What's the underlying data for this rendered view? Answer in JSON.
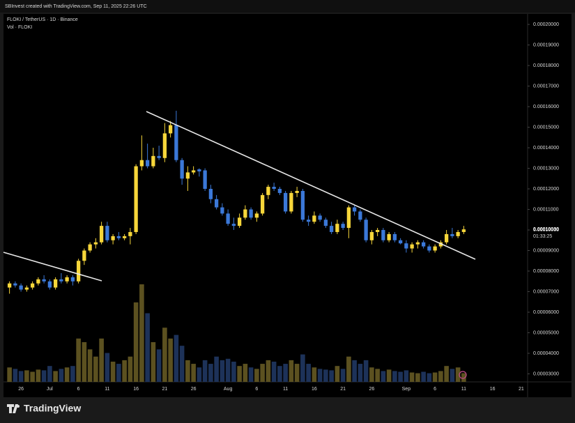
{
  "credit": "SBInvest created with TradingView.com, Sep 11, 2025 22:26 UTC",
  "brand": "TradingView",
  "chart_data": {
    "type": "candlestick",
    "title": "FLOKI / TetherUS · 1D · Binance",
    "subtitle": "Vol · FLOKI",
    "up_color": "#f7d63a",
    "down_color": "#3b78d8",
    "volume_up_color": "#5c5120",
    "volume_down_color": "#1d3259",
    "categories": [
      null,
      null,
      "26",
      null,
      null,
      null,
      null,
      "Jul",
      null,
      null,
      null,
      null,
      "6",
      null,
      null,
      null,
      null,
      "11",
      null,
      null,
      null,
      null,
      "16",
      null,
      null,
      null,
      null,
      "21",
      null,
      null,
      null,
      null,
      "26",
      null,
      null,
      null,
      null,
      null,
      "Aug",
      null,
      null,
      null,
      null,
      "6",
      null,
      null,
      null,
      null,
      "11",
      null,
      null,
      null,
      null,
      "16",
      null,
      null,
      null,
      null,
      "21",
      null,
      null,
      null,
      null,
      "26",
      null,
      null,
      null,
      null,
      null,
      "Sep",
      null,
      null,
      null,
      null,
      "6",
      null,
      null,
      null,
      null,
      "11",
      null,
      null,
      null,
      null,
      "16",
      null,
      null,
      null,
      null,
      "21"
    ],
    "open": [
      7.2e-05,
      7.4e-05,
      7.3e-05,
      7.1e-05,
      7.2e-05,
      7.4e-05,
      7.6e-05,
      7.5e-05,
      7.2e-05,
      7.6e-05,
      7.5e-05,
      7.7e-05,
      7.5e-05,
      8.5e-05,
      9e-05,
      9.3e-05,
      9.4e-05,
      0.000102,
      9.5e-05,
      9.7e-05,
      9.6e-05,
      9.7e-05,
      9.9e-05,
      0.000131,
      0.000134,
      0.000131,
      0.000136,
      0.000135,
      0.000147,
      0.000151,
      0.000134,
      0.000125,
      0.000128,
      0.0001295,
      0.000129,
      0.00012,
      0.000115,
      0.000111,
      0.000108,
      0.000103,
      0.000102,
      0.000106,
      0.00011,
      0.000106,
      0.000108,
      0.000117,
      0.000121,
      0.00012,
      0.000118,
      0.000109,
      0.000118,
      0.000119,
      0.000105,
      0.000104,
      0.000107,
      0.000105,
      0.000102,
      9.9e-05,
      0.000103,
      0.000101,
      0.000111,
      0.000109,
      0.000105,
      9.5e-05,
      9.9e-05,
      0.0001,
      9.5e-05,
      9.8e-05,
      9.5e-05,
      9.35e-05,
      9.1e-05,
      9.3e-05,
      9.4e-05,
      9.2e-05,
      9e-05,
      9.2e-05,
      9.4e-05,
      9.8e-05,
      9.7e-05,
      9.9e-05,
      null,
      null,
      null,
      null,
      null,
      null,
      null,
      null,
      null,
      null
    ],
    "high": [
      7.5e-05,
      7.5e-05,
      7.4e-05,
      7.3e-05,
      7.5e-05,
      7.7e-05,
      7.8e-05,
      7.6e-05,
      7.7e-05,
      7.9e-05,
      7.8e-05,
      7.8e-05,
      8.6e-05,
      9.1e-05,
      9.4e-05,
      9.6e-05,
      0.000104,
      0.000104,
      9.8e-05,
      9.9e-05,
      9.8e-05,
      0.000101,
      0.000132,
      0.000146,
      0.000142,
      0.00014,
      0.000141,
      0.000152,
      0.000153,
      0.000158,
      0.000135,
      0.000131,
      0.000131,
      0.00013,
      0.00013,
      0.000122,
      0.000117,
      0.000113,
      0.00011,
      0.000106,
      0.000108,
      0.000112,
      0.000111,
      0.000109,
      0.000118,
      0.000122,
      0.000123,
      0.000121,
      0.000119,
      0.000119,
      0.000121,
      0.00012,
      0.000107,
      0.000109,
      0.000108,
      0.000106,
      0.000104,
      0.000105,
      0.000104,
      0.000112,
      0.000112,
      0.00011,
      0.000106,
      0.0001,
      0.000101,
      0.000101,
      9.9e-05,
      9.9e-05,
      9.6e-05,
      9.5e-05,
      9.4e-05,
      9.5e-05,
      9.5e-05,
      9.3e-05,
      9.3e-05,
      9.5e-05,
      0.0001,
      0.000101,
      0.0001,
      0.000102,
      null,
      null,
      null,
      null,
      null,
      null,
      null,
      null,
      null,
      null
    ],
    "low": [
      6.9e-05,
      7.2e-05,
      7e-05,
      7e-05,
      7.1e-05,
      7.3e-05,
      7.4e-05,
      7.1e-05,
      7.1e-05,
      7.4e-05,
      7.4e-05,
      7.3e-05,
      7.4e-05,
      8.3e-05,
      8.9e-05,
      9.1e-05,
      9.3e-05,
      9.4e-05,
      9.3e-05,
      9.5e-05,
      9.5e-05,
      9.3e-05,
      9.8e-05,
      0.000129,
      0.00013,
      0.00013,
      0.000134,
      0.000133,
      0.000145,
      0.000133,
      0.000122,
      0.000119,
      0.000127,
      0.000126,
      0.000119,
      0.000113,
      0.00011,
      0.000107,
      0.000102,
      0.0001,
      0.000101,
      0.000105,
      0.000105,
      0.000104,
      0.000107,
      0.000115,
      0.000119,
      0.000117,
      0.000108,
      0.000108,
      0.000116,
      0.000104,
      0.000102,
      0.000103,
      0.000104,
      0.000101,
      9.8e-05,
      9.8e-05,
      0.0001,
      9.6e-05,
      0.000107,
      0.000104,
      9.4e-05,
      9.3e-05,
      9.7e-05,
      9.4e-05,
      9.4e-05,
      9.4e-05,
      9.3e-05,
      8.9e-05,
      8.9e-05,
      9.1e-05,
      9.1e-05,
      8.9e-05,
      8.9e-05,
      9.1e-05,
      9.3e-05,
      9.6e-05,
      9.6e-05,
      9.8e-05,
      null,
      null,
      null,
      null,
      null,
      null,
      null,
      null,
      null,
      null
    ],
    "close": [
      7.4e-05,
      7.3e-05,
      7.1e-05,
      7.2e-05,
      7.4e-05,
      7.6e-05,
      7.5e-05,
      7.2e-05,
      7.6e-05,
      7.5e-05,
      7.7e-05,
      7.5e-05,
      8.5e-05,
      9e-05,
      9.3e-05,
      9.4e-05,
      0.000102,
      9.5e-05,
      9.7e-05,
      9.6e-05,
      9.7e-05,
      9.9e-05,
      0.000131,
      0.000134,
      0.000131,
      0.000136,
      0.000135,
      0.000147,
      0.000151,
      0.000134,
      0.000125,
      0.000128,
      0.000129,
      0.0001285,
      0.00012,
      0.000115,
      0.000111,
      0.000108,
      0.000103,
      0.000102,
      0.000106,
      0.00011,
      0.000106,
      0.000108,
      0.000117,
      0.000121,
      0.00012,
      0.000118,
      0.000109,
      0.000118,
      0.000119,
      0.000105,
      0.000104,
      0.000107,
      0.000105,
      0.000102,
      9.9e-05,
      0.000103,
      0.000101,
      0.000111,
      0.000109,
      0.000105,
      9.5e-05,
      9.9e-05,
      0.0001,
      9.5e-05,
      9.8e-05,
      9.5e-05,
      9.35e-05,
      9.1e-05,
      9.3e-05,
      9.4e-05,
      9.2e-05,
      9e-05,
      9.2e-05,
      9.4e-05,
      9.8e-05,
      9.7e-05,
      9.9e-05,
      0.0001003,
      null,
      null,
      null,
      null,
      null,
      null,
      null,
      null,
      null,
      null
    ],
    "volume": [
      20,
      18,
      15,
      16,
      14,
      17,
      16,
      22,
      15,
      18,
      20,
      22,
      60,
      55,
      45,
      35,
      60,
      40,
      28,
      25,
      30,
      35,
      110,
      135,
      95,
      55,
      45,
      75,
      60,
      65,
      50,
      30,
      25,
      20,
      30,
      25,
      35,
      30,
      32,
      28,
      22,
      25,
      20,
      18,
      25,
      30,
      28,
      22,
      25,
      30,
      25,
      38,
      25,
      20,
      18,
      17,
      16,
      22,
      18,
      35,
      30,
      25,
      30,
      20,
      18,
      15,
      17,
      15,
      14,
      16,
      13,
      12,
      14,
      12,
      13,
      15,
      22,
      18,
      20,
      12,
      null,
      null,
      null,
      null,
      null,
      null,
      null,
      null,
      null,
      null
    ],
    "ylim": [
      2.61e-05,
      0.0002051
    ],
    "yticks": [
      {
        "value": 3e-05,
        "label": "0.00003000"
      },
      {
        "value": 4e-05,
        "label": "0.00004000"
      },
      {
        "value": 5e-05,
        "label": "0.00005000"
      },
      {
        "value": 6e-05,
        "label": "0.00006000"
      },
      {
        "value": 7e-05,
        "label": "0.00007000"
      },
      {
        "value": 8e-05,
        "label": "0.00008000"
      },
      {
        "value": 9e-05,
        "label": "0.00009000"
      },
      {
        "value": 0.0001,
        "label": "0.00010000"
      },
      {
        "value": 0.00011,
        "label": "0.00011000"
      },
      {
        "value": 0.00012,
        "label": "0.00012000"
      },
      {
        "value": 0.00013,
        "label": "0.00013000"
      },
      {
        "value": 0.00014,
        "label": "0.00014000"
      },
      {
        "value": 0.00015,
        "label": "0.00015000"
      },
      {
        "value": 0.00016,
        "label": "0.00016000"
      },
      {
        "value": 0.00017,
        "label": "0.00017000"
      },
      {
        "value": 0.00018,
        "label": "0.00018000"
      },
      {
        "value": 0.00019,
        "label": "0.00019000"
      },
      {
        "value": 0.0002,
        "label": "0.00020000"
      }
    ],
    "last_price": {
      "value": 0.0001003,
      "label": "0.00010030",
      "countdown": "01:33:25"
    }
  }
}
